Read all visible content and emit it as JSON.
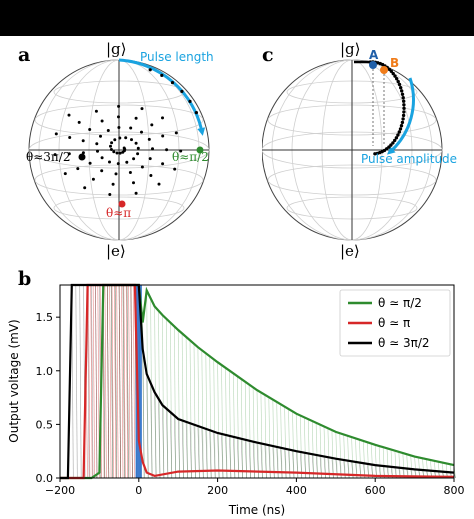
{
  "panels": {
    "a": {
      "label": "a",
      "ket_top": "|g⟩",
      "ket_bottom": "|e⟩",
      "arrow_label": "Pulse length",
      "markers": [
        {
          "text": "θ≈3π/2",
          "color": "#000000"
        },
        {
          "text": "θ≈π/2",
          "color": "#2e8b2e"
        },
        {
          "text": "θ≈π",
          "color": "#d62728"
        }
      ]
    },
    "c": {
      "label": "c",
      "ket_top": "|g⟩",
      "ket_bottom": "|e⟩",
      "arrow_label": "Pulse amplitude",
      "point_a": "A",
      "point_b": "B",
      "color_a": "#1f5fa8",
      "color_b": "#f07c1a"
    },
    "b": {
      "label": "b"
    }
  },
  "colors": {
    "arrow": "#1aa3e0"
  },
  "chart_data": {
    "type": "line",
    "xlabel": "Time (ns)",
    "ylabel": "Output voltage (mV)",
    "xlim": [
      -200,
      800
    ],
    "ylim": [
      0,
      1.8
    ],
    "xticks": [
      "−200",
      "0",
      "200",
      "400",
      "600",
      "800"
    ],
    "yticks": [
      "0.0",
      "0.5",
      "1.0",
      "1.5"
    ],
    "legend_position": "top-right",
    "series": [
      {
        "name": "θ ≃ π/2",
        "color": "#2e8b2e",
        "x": [
          -200,
          -120,
          -100,
          -90,
          0,
          10,
          20,
          40,
          60,
          100,
          150,
          200,
          300,
          400,
          500,
          600,
          700,
          800
        ],
        "y": [
          0.0,
          0.0,
          0.05,
          1.8,
          1.8,
          1.45,
          1.75,
          1.6,
          1.52,
          1.38,
          1.22,
          1.08,
          0.82,
          0.6,
          0.43,
          0.31,
          0.2,
          0.12
        ]
      },
      {
        "name": "θ ≃ π",
        "color": "#d62728",
        "x": [
          -200,
          -140,
          -130,
          -10,
          0,
          10,
          20,
          40,
          100,
          200,
          400,
          600,
          800
        ],
        "y": [
          0.0,
          0.0,
          1.8,
          1.8,
          0.35,
          0.15,
          0.05,
          0.02,
          0.06,
          0.07,
          0.05,
          0.02,
          0.01
        ]
      },
      {
        "name": "θ ≃ 3π/2",
        "color": "#000000",
        "x": [
          -200,
          -180,
          -170,
          0,
          10,
          20,
          40,
          60,
          100,
          200,
          300,
          400,
          500,
          600,
          700,
          800
        ],
        "y": [
          0.0,
          0.0,
          1.8,
          1.8,
          1.2,
          0.97,
          0.8,
          0.68,
          0.55,
          0.42,
          0.33,
          0.25,
          0.18,
          0.12,
          0.08,
          0.05
        ]
      }
    ]
  }
}
